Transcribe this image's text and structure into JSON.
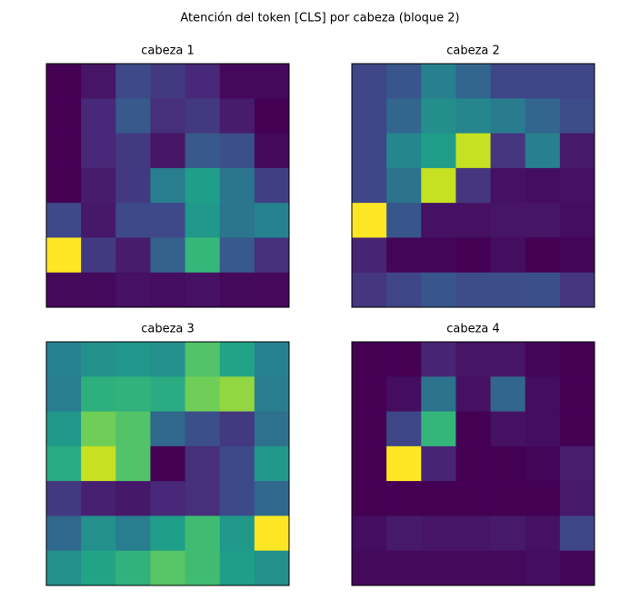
{
  "title": "Atención del token [CLS] por cabeza (bloque 2)",
  "chart_data": [
    {
      "type": "heatmap",
      "title": "cabeza 1",
      "colormap": "viridis",
      "values": [
        [
          0.0,
          0.05,
          0.2,
          0.15,
          0.1,
          0.02,
          0.02
        ],
        [
          0.0,
          0.1,
          0.25,
          0.12,
          0.15,
          0.07,
          0.0
        ],
        [
          0.0,
          0.1,
          0.15,
          0.05,
          0.25,
          0.22,
          0.02
        ],
        [
          0.0,
          0.07,
          0.15,
          0.38,
          0.5,
          0.35,
          0.17
        ],
        [
          0.2,
          0.06,
          0.2,
          0.2,
          0.48,
          0.35,
          0.4
        ],
        [
          1.0,
          0.15,
          0.07,
          0.28,
          0.6,
          0.25,
          0.12
        ],
        [
          0.02,
          0.02,
          0.04,
          0.03,
          0.04,
          0.021,
          0.019
        ]
      ]
    },
    {
      "type": "heatmap",
      "title": "cabeza 2",
      "colormap": "viridis",
      "values": [
        [
          0.2,
          0.25,
          0.4,
          0.3,
          0.2,
          0.2,
          0.2
        ],
        [
          0.2,
          0.3,
          0.45,
          0.42,
          0.38,
          0.3,
          0.22
        ],
        [
          0.2,
          0.42,
          0.5,
          0.85,
          0.15,
          0.4,
          0.07
        ],
        [
          0.2,
          0.35,
          0.85,
          0.15,
          0.05,
          0.04,
          0.05
        ],
        [
          1.0,
          0.25,
          0.05,
          0.05,
          0.06,
          0.06,
          0.04
        ],
        [
          0.1,
          0.02,
          0.02,
          0.01,
          0.04,
          0.01,
          0.02
        ],
        [
          0.15,
          0.2,
          0.25,
          0.22,
          0.22,
          0.23,
          0.15
        ]
      ]
    },
    {
      "type": "heatmap",
      "title": "cabeza 3",
      "colormap": "viridis",
      "values": [
        [
          0.4,
          0.45,
          0.47,
          0.45,
          0.65,
          0.52,
          0.4
        ],
        [
          0.38,
          0.57,
          0.58,
          0.55,
          0.7,
          0.75,
          0.38
        ],
        [
          0.48,
          0.7,
          0.65,
          0.3,
          0.22,
          0.15,
          0.33
        ],
        [
          0.55,
          0.85,
          0.65,
          0.0,
          0.12,
          0.2,
          0.48
        ],
        [
          0.15,
          0.08,
          0.06,
          0.1,
          0.12,
          0.2,
          0.3
        ],
        [
          0.3,
          0.45,
          0.38,
          0.5,
          0.62,
          0.48,
          1.0
        ],
        [
          0.45,
          0.52,
          0.58,
          0.66,
          0.62,
          0.5,
          0.45
        ]
      ]
    },
    {
      "type": "heatmap",
      "title": "cabeza 4",
      "colormap": "viridis",
      "values": [
        [
          0.01,
          0.01,
          0.1,
          0.06,
          0.06,
          0.02,
          0.01
        ],
        [
          0.01,
          0.04,
          0.35,
          0.05,
          0.3,
          0.04,
          0.01
        ],
        [
          0.01,
          0.2,
          0.6,
          0.01,
          0.05,
          0.04,
          0.01
        ],
        [
          0.01,
          1.0,
          0.1,
          0.01,
          0.01,
          0.02,
          0.08
        ],
        [
          0.01,
          0.01,
          0.01,
          0.01,
          0.01,
          0.01,
          0.07
        ],
        [
          0.04,
          0.07,
          0.06,
          0.06,
          0.07,
          0.05,
          0.2
        ],
        [
          0.03,
          0.03,
          0.03,
          0.03,
          0.03,
          0.04,
          0.02
        ]
      ]
    }
  ]
}
